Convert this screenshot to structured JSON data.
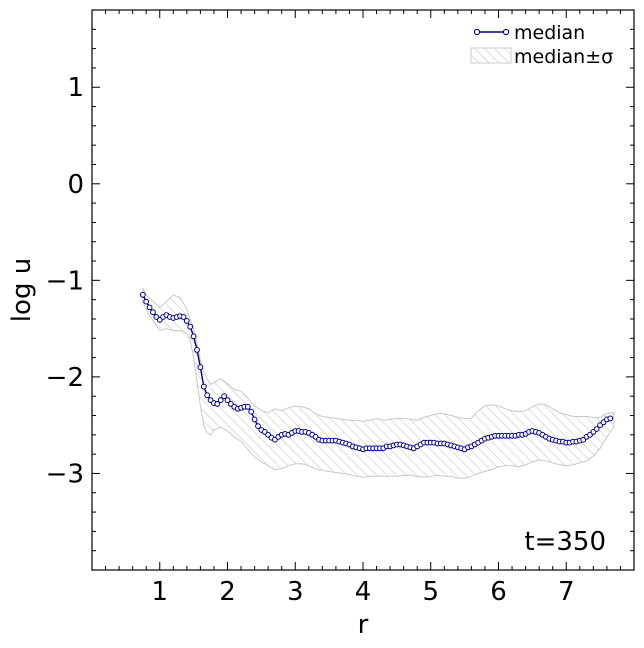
{
  "chart_data": {
    "type": "line",
    "xlabel": "r",
    "ylabel": "log u",
    "xlim": [
      0,
      8
    ],
    "ylim": [
      -4,
      1.8
    ],
    "x_ticks": [
      1,
      2,
      3,
      4,
      5,
      6,
      7
    ],
    "y_ticks": [
      -3,
      -2,
      -1,
      0,
      1
    ],
    "x_tick_labels": [
      "1",
      "2",
      "3",
      "4",
      "5",
      "6",
      "7"
    ],
    "y_tick_labels": [
      "−3",
      "−2",
      "−1",
      "0",
      "1"
    ],
    "x_minor_step": 0.2,
    "y_minor_step": 0.2,
    "annotation": "t=350",
    "legend_position": "top-right",
    "colors": {
      "line": "#00008b",
      "band": "#bbbbbb"
    },
    "series": [
      {
        "name": "median",
        "x": [
          0.75,
          0.8,
          0.85,
          0.9,
          0.95,
          1.0,
          1.05,
          1.1,
          1.15,
          1.2,
          1.25,
          1.3,
          1.35,
          1.4,
          1.45,
          1.5,
          1.55,
          1.6,
          1.65,
          1.7,
          1.75,
          1.8,
          1.85,
          1.9,
          1.95,
          2.0,
          2.05,
          2.1,
          2.15,
          2.2,
          2.25,
          2.3,
          2.35,
          2.4,
          2.45,
          2.5,
          2.55,
          2.6,
          2.65,
          2.7,
          2.75,
          2.8,
          2.85,
          2.9,
          2.95,
          3.0,
          3.05,
          3.1,
          3.15,
          3.2,
          3.25,
          3.3,
          3.35,
          3.4,
          3.45,
          3.5,
          3.55,
          3.6,
          3.65,
          3.7,
          3.75,
          3.8,
          3.85,
          3.9,
          3.95,
          4.0,
          4.05,
          4.1,
          4.15,
          4.2,
          4.25,
          4.3,
          4.35,
          4.4,
          4.45,
          4.5,
          4.55,
          4.6,
          4.65,
          4.7,
          4.75,
          4.8,
          4.85,
          4.9,
          4.95,
          5.0,
          5.05,
          5.1,
          5.15,
          5.2,
          5.25,
          5.3,
          5.35,
          5.4,
          5.45,
          5.5,
          5.55,
          5.6,
          5.65,
          5.7,
          5.75,
          5.8,
          5.85,
          5.9,
          5.95,
          6.0,
          6.05,
          6.1,
          6.15,
          6.2,
          6.25,
          6.3,
          6.35,
          6.4,
          6.45,
          6.5,
          6.55,
          6.6,
          6.65,
          6.7,
          6.75,
          6.8,
          6.85,
          6.9,
          6.95,
          7.0,
          7.05,
          7.1,
          7.15,
          7.2,
          7.25,
          7.3,
          7.35,
          7.4,
          7.45,
          7.5,
          7.55,
          7.6,
          7.65
        ],
        "values": [
          -1.15,
          -1.22,
          -1.28,
          -1.33,
          -1.38,
          -1.41,
          -1.38,
          -1.36,
          -1.38,
          -1.39,
          -1.38,
          -1.37,
          -1.38,
          -1.42,
          -1.48,
          -1.58,
          -1.72,
          -1.9,
          -2.1,
          -2.19,
          -2.24,
          -2.27,
          -2.28,
          -2.24,
          -2.2,
          -2.24,
          -2.28,
          -2.31,
          -2.33,
          -2.32,
          -2.31,
          -2.31,
          -2.36,
          -2.44,
          -2.51,
          -2.55,
          -2.57,
          -2.6,
          -2.63,
          -2.65,
          -2.62,
          -2.6,
          -2.59,
          -2.6,
          -2.58,
          -2.56,
          -2.56,
          -2.57,
          -2.57,
          -2.58,
          -2.6,
          -2.62,
          -2.65,
          -2.66,
          -2.66,
          -2.66,
          -2.66,
          -2.66,
          -2.67,
          -2.68,
          -2.69,
          -2.7,
          -2.72,
          -2.73,
          -2.74,
          -2.75,
          -2.74,
          -2.74,
          -2.74,
          -2.74,
          -2.74,
          -2.74,
          -2.72,
          -2.72,
          -2.71,
          -2.7,
          -2.7,
          -2.71,
          -2.72,
          -2.73,
          -2.74,
          -2.72,
          -2.7,
          -2.68,
          -2.68,
          -2.68,
          -2.68,
          -2.69,
          -2.69,
          -2.69,
          -2.7,
          -2.71,
          -2.72,
          -2.73,
          -2.74,
          -2.75,
          -2.73,
          -2.72,
          -2.7,
          -2.68,
          -2.66,
          -2.64,
          -2.63,
          -2.62,
          -2.61,
          -2.61,
          -2.61,
          -2.61,
          -2.61,
          -2.61,
          -2.61,
          -2.6,
          -2.6,
          -2.59,
          -2.57,
          -2.56,
          -2.57,
          -2.58,
          -2.6,
          -2.62,
          -2.64,
          -2.65,
          -2.66,
          -2.67,
          -2.67,
          -2.68,
          -2.68,
          -2.67,
          -2.67,
          -2.66,
          -2.65,
          -2.62,
          -2.6,
          -2.57,
          -2.54,
          -2.5,
          -2.47,
          -2.44,
          -2.43
        ]
      },
      {
        "name": "median±σ",
        "x": [
          0.75,
          0.8,
          0.9,
          1.0,
          1.1,
          1.2,
          1.3,
          1.4,
          1.45,
          1.5,
          1.55,
          1.6,
          1.65,
          1.7,
          1.75,
          1.8,
          1.9,
          2.0,
          2.1,
          2.2,
          2.3,
          2.4,
          2.5,
          2.6,
          2.7,
          2.8,
          2.9,
          3.0,
          3.1,
          3.2,
          3.3,
          3.4,
          3.5,
          3.6,
          3.7,
          3.8,
          3.9,
          4.0,
          4.1,
          4.2,
          4.3,
          4.4,
          4.5,
          4.6,
          4.7,
          4.8,
          4.9,
          5.0,
          5.1,
          5.2,
          5.3,
          5.4,
          5.5,
          5.6,
          5.7,
          5.8,
          5.9,
          6.0,
          6.1,
          6.2,
          6.3,
          6.4,
          6.5,
          6.6,
          6.7,
          6.8,
          6.9,
          7.0,
          7.1,
          7.2,
          7.3,
          7.4,
          7.5,
          7.6,
          7.7
        ],
        "upper": [
          -1.08,
          -1.15,
          -1.22,
          -1.28,
          -1.22,
          -1.15,
          -1.18,
          -1.3,
          -1.4,
          -1.5,
          -1.65,
          -1.83,
          -1.95,
          -2.02,
          -2.08,
          -2.06,
          -2.02,
          -2.07,
          -2.13,
          -2.15,
          -2.22,
          -2.3,
          -2.35,
          -2.37,
          -2.33,
          -2.35,
          -2.32,
          -2.3,
          -2.31,
          -2.33,
          -2.38,
          -2.41,
          -2.42,
          -2.43,
          -2.44,
          -2.45,
          -2.45,
          -2.46,
          -2.45,
          -2.43,
          -2.45,
          -2.44,
          -2.43,
          -2.43,
          -2.44,
          -2.45,
          -2.42,
          -2.4,
          -2.38,
          -2.38,
          -2.4,
          -2.42,
          -2.43,
          -2.43,
          -2.35,
          -2.3,
          -2.29,
          -2.3,
          -2.33,
          -2.35,
          -2.36,
          -2.35,
          -2.31,
          -2.28,
          -2.29,
          -2.33,
          -2.37,
          -2.39,
          -2.41,
          -2.41,
          -2.41,
          -2.42,
          -2.42,
          -2.38,
          -2.37
        ],
        "lower": [
          -1.22,
          -1.3,
          -1.42,
          -1.52,
          -1.5,
          -1.52,
          -1.52,
          -1.55,
          -1.62,
          -1.8,
          -2.05,
          -2.3,
          -2.5,
          -2.58,
          -2.6,
          -2.55,
          -2.52,
          -2.56,
          -2.62,
          -2.67,
          -2.75,
          -2.83,
          -2.88,
          -2.92,
          -2.96,
          -2.95,
          -2.92,
          -2.9,
          -2.9,
          -2.92,
          -2.95,
          -2.97,
          -2.98,
          -2.99,
          -3.0,
          -3.01,
          -3.03,
          -3.04,
          -3.03,
          -3.03,
          -3.03,
          -3.03,
          -3.03,
          -3.02,
          -3.02,
          -3.03,
          -3.04,
          -3.03,
          -3.02,
          -3.03,
          -3.03,
          -3.05,
          -3.05,
          -3.03,
          -3.0,
          -2.98,
          -2.96,
          -2.93,
          -2.92,
          -2.92,
          -2.93,
          -2.91,
          -2.88,
          -2.86,
          -2.87,
          -2.89,
          -2.91,
          -2.92,
          -2.91,
          -2.89,
          -2.87,
          -2.82,
          -2.74,
          -2.62,
          -2.52
        ]
      }
    ]
  }
}
